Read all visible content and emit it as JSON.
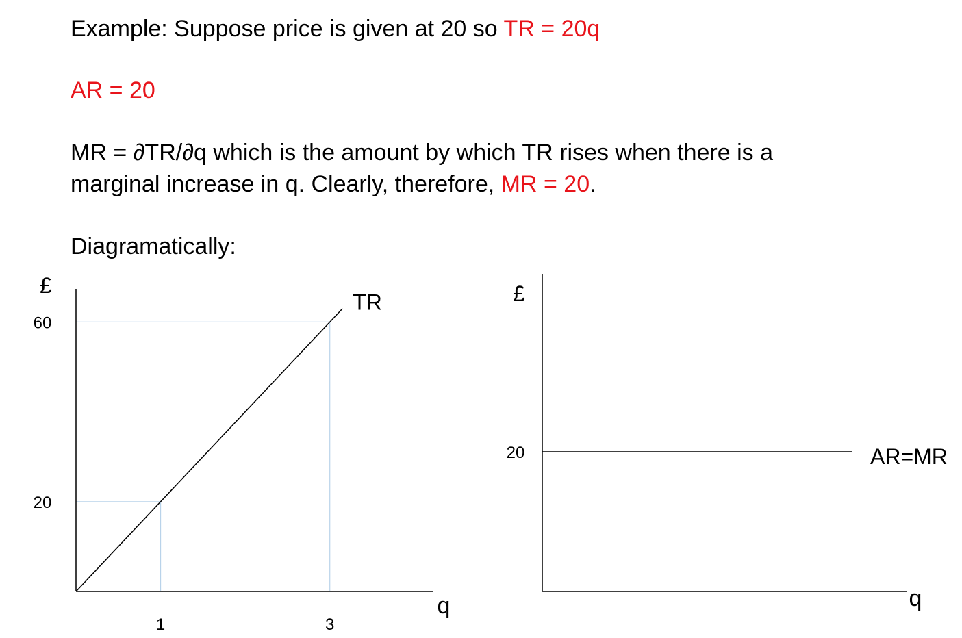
{
  "text": {
    "line1": {
      "plain": "Example: Suppose price is given at 20 so ",
      "red": "TR = 20q"
    },
    "line2": {
      "red": "AR = 20"
    },
    "line3": {
      "plain": "MR = ∂TR/∂q which is the amount by which TR rises when there is a"
    },
    "line4": {
      "plain": "marginal increase in q. Clearly, therefore, ",
      "red": "MR = 20",
      "tail": "."
    },
    "line5": {
      "plain": "Diagramatically:"
    }
  },
  "colors": {
    "highlight": "#e8141b",
    "guide": "#b9d3ea",
    "axis": "#000000"
  },
  "chart_data": [
    {
      "type": "line",
      "title": "",
      "ylabel": "£",
      "xlabel": "q",
      "xlim": [
        0,
        4.2
      ],
      "ylim": [
        0,
        75
      ],
      "xticks": [
        1,
        3
      ],
      "yticks": [
        20,
        60
      ],
      "grid": false,
      "series": [
        {
          "name": "TR",
          "x": [
            0,
            3.15
          ],
          "y": [
            0,
            63
          ]
        }
      ],
      "guides": [
        {
          "x": 1,
          "y": 20
        },
        {
          "x": 3,
          "y": 60
        }
      ]
    },
    {
      "type": "line",
      "title": "",
      "ylabel": "£",
      "xlabel": "q",
      "xlim": [
        0,
        4.5
      ],
      "ylim": [
        0,
        40
      ],
      "xticks": [],
      "yticks": [
        20
      ],
      "grid": false,
      "series": [
        {
          "name": "AR=MR",
          "x": [
            0,
            4.5
          ],
          "y": [
            20,
            20
          ]
        }
      ]
    }
  ]
}
